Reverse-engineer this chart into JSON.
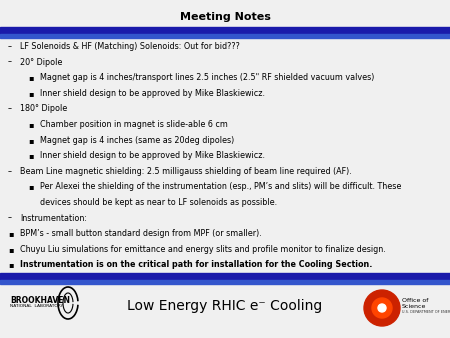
{
  "title": "Meeting Notes",
  "title_fontsize": 8,
  "title_fontweight": "bold",
  "bg_color": "#f0f0f0",
  "top_bar_color": "#1a1aaa",
  "accent_bar_color": "#3355cc",
  "footer_text": "Low Energy RHIC e⁻ Cooling",
  "footer_fontsize": 10,
  "body_lines": [
    {
      "indent": 0,
      "bullet": "–",
      "text": "LF Solenoids & HF (Matching) Solenoids: Out for bid???",
      "bold": false
    },
    {
      "indent": 0,
      "bullet": "–",
      "text": "20° Dipole",
      "bold": false
    },
    {
      "indent": 1,
      "bullet": "▪",
      "text": "Magnet gap is 4 inches/transport lines 2.5 inches (2.5\" RF shielded vacuum valves)",
      "bold": false
    },
    {
      "indent": 1,
      "bullet": "▪",
      "text": "Inner shield design to be approved by Mike Blaskiewicz.",
      "bold": false
    },
    {
      "indent": 0,
      "bullet": "–",
      "text": "180° Dipole",
      "bold": false
    },
    {
      "indent": 1,
      "bullet": "▪",
      "text": "Chamber position in magnet is slide-able 6 cm",
      "bold": false
    },
    {
      "indent": 1,
      "bullet": "▪",
      "text": "Magnet gap is 4 inches (same as 20deg dipoles)",
      "bold": false
    },
    {
      "indent": 1,
      "bullet": "▪",
      "text": "Inner shield design to be approved by Mike Blaskiewicz.",
      "bold": false
    },
    {
      "indent": 0,
      "bullet": "–",
      "text": "Beam Line magnetic shielding: 2.5 milligauss shielding of beam line required (AF).",
      "bold": false
    },
    {
      "indent": 1,
      "bullet": "▪",
      "text": "Per Alexei the shielding of the instrumentation (esp., PM’s and slits) will be difficult. These",
      "bold": false
    },
    {
      "indent": 1,
      "bullet": " ",
      "text": "devices should be kept as near to LF solenoids as possible.",
      "bold": false
    },
    {
      "indent": 0,
      "bullet": "–",
      "text": "Instrumentation:",
      "bold": false
    },
    {
      "indent": 0,
      "bullet": "▪",
      "text": "BPM’s - small button standard design from MPF (or smaller).",
      "bold": false
    },
    {
      "indent": 0,
      "bullet": "▪",
      "text": "Chuyu Liu simulations for emittance and energy slits and profile monitor to finalize design.",
      "bold": false
    },
    {
      "indent": 0,
      "bullet": "▪",
      "text": "Instrumentation is on the critical path for installation for the Cooling Section.",
      "bold": true
    }
  ],
  "body_fontsize": 5.8,
  "dark_blue": "#1a1aaa",
  "medium_blue": "#3355cc"
}
